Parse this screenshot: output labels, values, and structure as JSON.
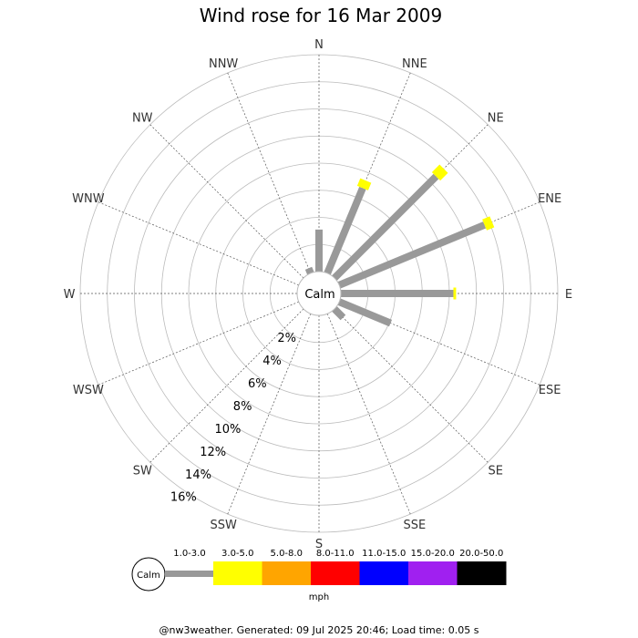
{
  "chart_data": {
    "type": "wind-rose",
    "title": "Wind rose for 16 Mar 2009",
    "directions": [
      "N",
      "NNE",
      "NE",
      "ENE",
      "E",
      "ESE",
      "SE",
      "SSE",
      "S",
      "SSW",
      "SW",
      "WSW",
      "W",
      "WNW",
      "NW",
      "NNW"
    ],
    "radial_ticks": [
      "2%",
      "4%",
      "6%",
      "8%",
      "10%",
      "12%",
      "14%",
      "16%"
    ],
    "radial_max": 16,
    "calm_label": "Calm",
    "speed_bins": [
      "1.0-3.0",
      "3.0-5.0",
      "5.0-8.0",
      "8.0-11.0",
      "11.0-15.0",
      "15.0-20.0",
      "20.0-50.0"
    ],
    "bin_colors": [
      "#999999",
      "#ffff00",
      "#ffa500",
      "#ff0000",
      "#0000ff",
      "#a020f0",
      "#000000"
    ],
    "unit": "mph",
    "series": [
      {
        "direction": "N",
        "segments": [
          3.1
        ]
      },
      {
        "direction": "NNE",
        "segments": [
          6.8,
          0.6
        ]
      },
      {
        "direction": "NE",
        "segments": [
          10.6,
          0.8
        ]
      },
      {
        "direction": "ENE",
        "segments": [
          11.6,
          0.6
        ]
      },
      {
        "direction": "E",
        "segments": [
          8.3,
          0.2
        ]
      },
      {
        "direction": "ESE",
        "segments": [
          4.1
        ]
      },
      {
        "direction": "SE",
        "segments": [
          0.9
        ]
      },
      {
        "direction": "SSE",
        "segments": []
      },
      {
        "direction": "S",
        "segments": []
      },
      {
        "direction": "SSW",
        "segments": []
      },
      {
        "direction": "SW",
        "segments": []
      },
      {
        "direction": "WSW",
        "segments": []
      },
      {
        "direction": "W",
        "segments": []
      },
      {
        "direction": "WNW",
        "segments": []
      },
      {
        "direction": "NW",
        "segments": []
      },
      {
        "direction": "NNW",
        "segments": [
          0.4
        ]
      }
    ]
  },
  "footer": "@nw3weather. Generated: 09 Jul 2025 20:46; Load time: 0.05 s"
}
